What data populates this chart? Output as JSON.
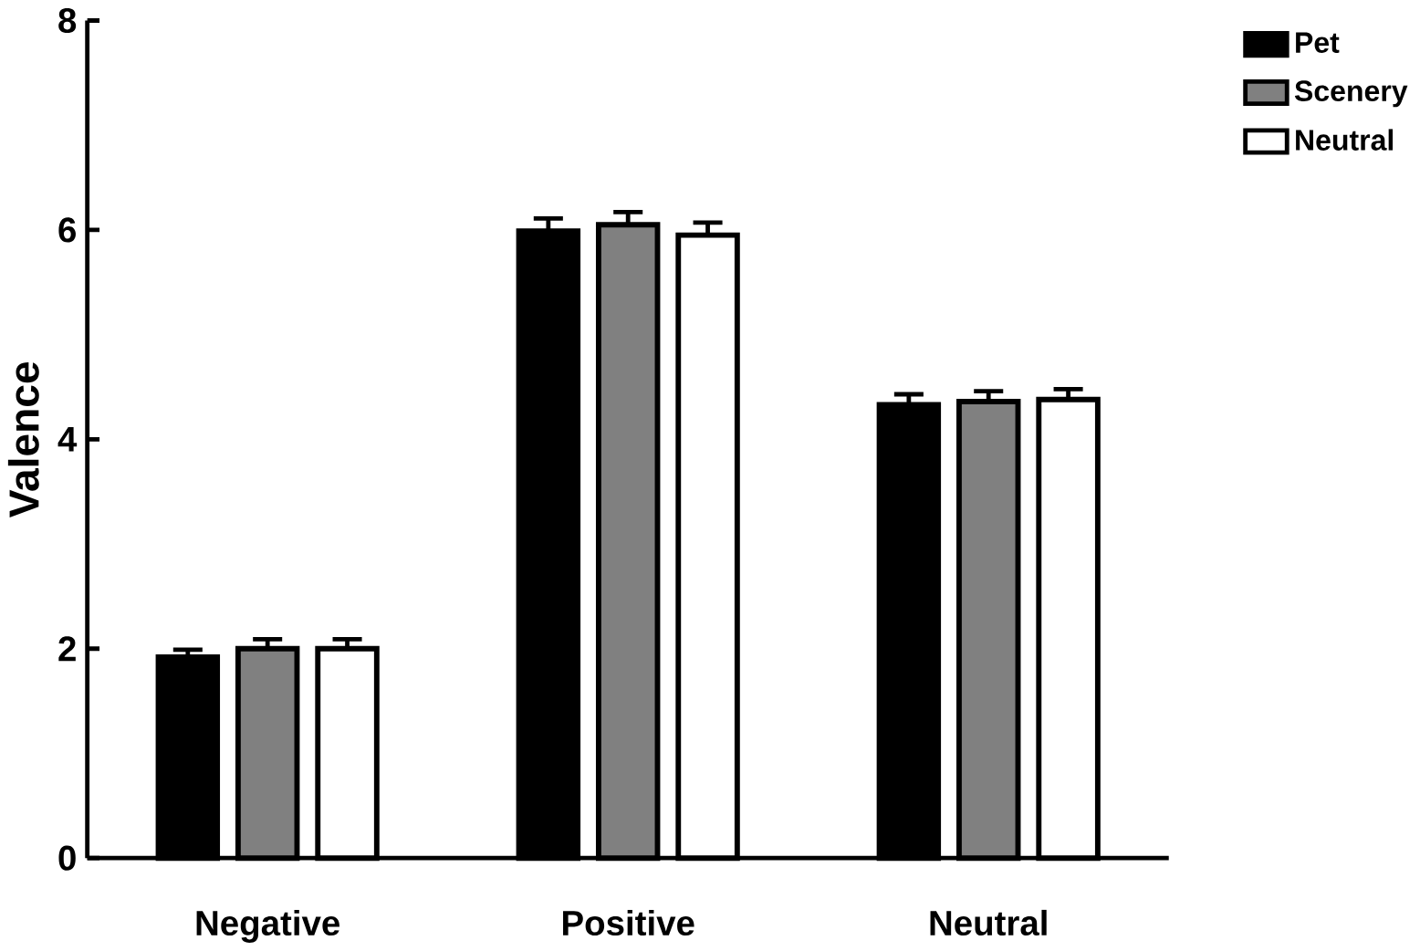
{
  "chart_data": {
    "type": "bar",
    "ylabel": "Valence",
    "categories": [
      "Negative",
      "Positive",
      "Neutral"
    ],
    "series": [
      {
        "name": "Pet",
        "color": "#000000",
        "values": [
          1.92,
          5.99,
          4.33
        ],
        "errors": [
          0.07,
          0.12,
          0.1
        ]
      },
      {
        "name": "Scenery",
        "color": "#808080",
        "values": [
          2.0,
          6.05,
          4.36
        ],
        "errors": [
          0.09,
          0.12,
          0.1
        ]
      },
      {
        "name": "Neutral",
        "color": "#ffffff",
        "values": [
          2.0,
          5.95,
          4.38
        ],
        "errors": [
          0.09,
          0.12,
          0.1
        ]
      }
    ],
    "ylim": [
      0,
      8
    ],
    "yticks": [
      0,
      2,
      4,
      6,
      8
    ],
    "grid": false,
    "legend": "top right"
  }
}
